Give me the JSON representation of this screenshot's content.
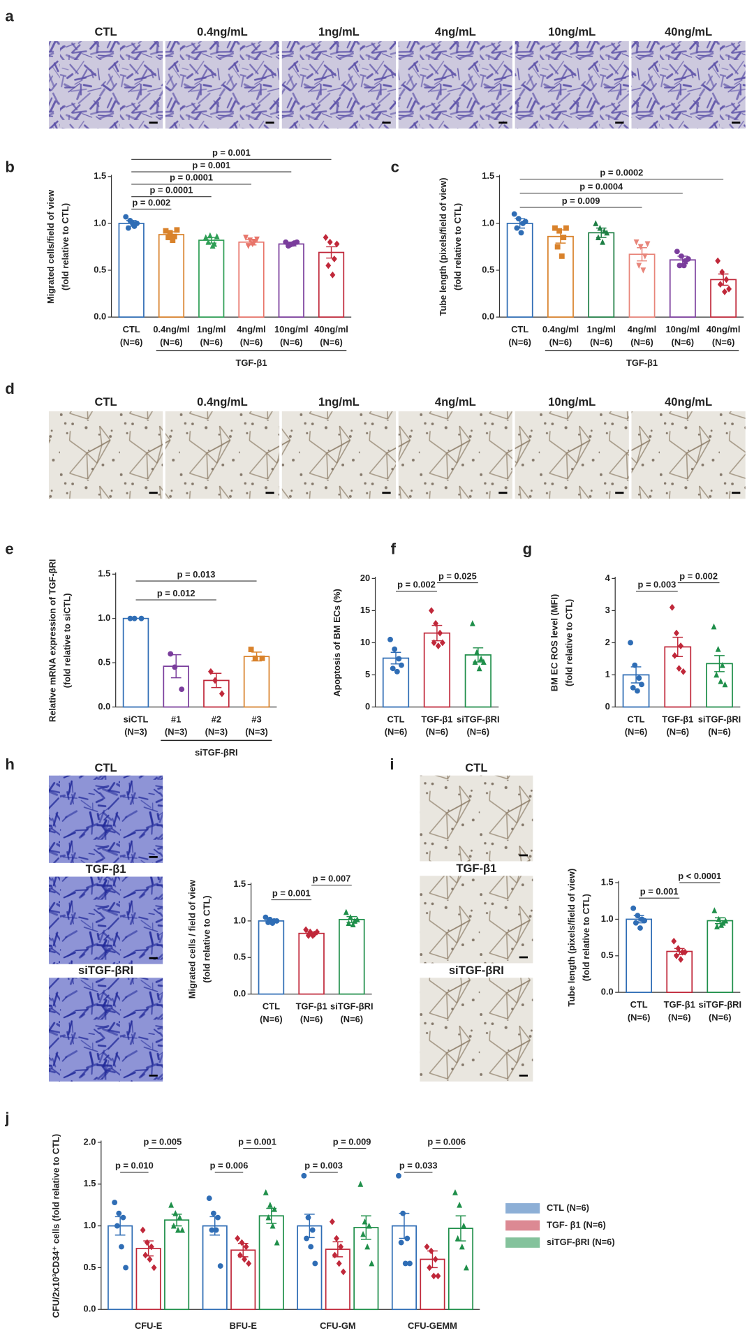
{
  "image_panels": [
    {
      "panel_label": "a",
      "labels": [
        "CTL",
        "0.4ng/mL",
        "1ng/mL",
        "4ng/mL",
        "10ng/mL",
        "40ng/mL"
      ]
    },
    {
      "panel_label": "d",
      "labels": [
        "CTL",
        "0.4ng/mL",
        "1ng/mL",
        "4ng/mL",
        "10ng/mL",
        "40ng/mL"
      ]
    },
    {
      "panel_label": "h",
      "labels": [
        "CTL",
        "TGF-β1",
        "siTGF-βRI"
      ]
    },
    {
      "panel_label": "i",
      "labels": [
        "CTL",
        "TGF-β1",
        "siTGF-βRI"
      ]
    }
  ],
  "chart_data": [
    {
      "type": "bar",
      "panel_label": "b",
      "ylabel": [
        "Migrated cells/field of view",
        "(fold relative to CTL)"
      ],
      "categories": [
        "CTL",
        "0.4ng/ml",
        "1ng/ml",
        "4ng/ml",
        "10ng/ml",
        "40ng/ml"
      ],
      "n_labels": [
        "(N=6)",
        "(N=6)",
        "(N=6)",
        "(N=6)",
        "(N=6)",
        "(N=6)"
      ],
      "values": [
        1.0,
        0.88,
        0.82,
        0.8,
        0.78,
        0.69
      ],
      "errors": [
        0.03,
        0.03,
        0.03,
        0.03,
        0.02,
        0.06
      ],
      "points": [
        [
          1.07,
          1.03,
          0.97,
          0.95,
          1.0,
          1.0
        ],
        [
          0.92,
          0.9,
          0.86,
          0.85,
          0.82,
          0.93
        ],
        [
          0.85,
          0.87,
          0.78,
          0.8,
          0.76,
          0.86
        ],
        [
          0.85,
          0.82,
          0.8,
          0.76,
          0.78,
          0.83
        ],
        [
          0.8,
          0.77,
          0.79,
          0.76,
          0.78,
          0.8
        ],
        [
          0.85,
          0.8,
          0.62,
          0.55,
          0.45,
          0.78
        ]
      ],
      "colors": [
        "#2f6db5",
        "#d9822b",
        "#2e9e55",
        "#e8756a",
        "#7a3d9c",
        "#c0283a"
      ],
      "markers": [
        "circle",
        "square",
        "triangle",
        "triangle-down",
        "circle",
        "diamond"
      ],
      "ylim": [
        0,
        1.5
      ],
      "yticks": [
        {
          "value": 0,
          "label": "0.0"
        },
        {
          "value": 0.5,
          "label": "0.5"
        },
        {
          "value": 1,
          "label": "1.0"
        },
        {
          "value": 1.5,
          "label": "1.5"
        }
      ],
      "annotations": [
        {
          "from": 0,
          "to": 5,
          "label": "p = 0.001"
        },
        {
          "from": 0,
          "to": 4,
          "label": "p = 0.001"
        },
        {
          "from": 0,
          "to": 3,
          "label": "p = 0.0001"
        },
        {
          "from": 0,
          "to": 2,
          "label": "p = 0.0001"
        },
        {
          "from": 0,
          "to": 1,
          "label": "p = 0.002"
        }
      ],
      "group": {
        "label": "TGF-β1",
        "from": 1,
        "to": 5
      }
    },
    {
      "type": "bar",
      "panel_label": "c",
      "ylabel": [
        "Tube length (pixels/field of view)",
        "(fold relative to CTL)"
      ],
      "categories": [
        "CTL",
        "0.4ng/ml",
        "1ng/ml",
        "4ng/ml",
        "10ng/ml",
        "40ng/ml"
      ],
      "n_labels": [
        "(N=6)",
        "(N=6)",
        "(N=6)",
        "(N=6)",
        "(N=6)",
        "(N=6)"
      ],
      "values": [
        1.0,
        0.86,
        0.9,
        0.67,
        0.61,
        0.4
      ],
      "errors": [
        0.05,
        0.07,
        0.05,
        0.07,
        0.04,
        0.06
      ],
      "points": [
        [
          1.1,
          1.05,
          1.0,
          0.95,
          0.9,
          1.02
        ],
        [
          0.95,
          0.92,
          0.85,
          0.75,
          0.65,
          0.95
        ],
        [
          1.0,
          0.95,
          0.92,
          0.85,
          0.8,
          0.9
        ],
        [
          0.8,
          0.75,
          0.65,
          0.55,
          0.5,
          0.78
        ],
        [
          0.7,
          0.65,
          0.6,
          0.55,
          0.55,
          0.62
        ],
        [
          0.6,
          0.48,
          0.4,
          0.35,
          0.27,
          0.3
        ]
      ],
      "colors": [
        "#2f6db5",
        "#d9822b",
        "#1f7f45",
        "#e8857a",
        "#7a3d9c",
        "#c0283a"
      ],
      "markers": [
        "circle",
        "square",
        "triangle",
        "triangle-down",
        "circle",
        "diamond"
      ],
      "ylim": [
        0,
        1.5
      ],
      "yticks": [
        {
          "value": 0,
          "label": "0.0"
        },
        {
          "value": 0.5,
          "label": "0.5"
        },
        {
          "value": 1,
          "label": "1.0"
        },
        {
          "value": 1.5,
          "label": "1.5"
        }
      ],
      "annotations": [
        {
          "from": 0,
          "to": 5,
          "label": "p = 0.0002"
        },
        {
          "from": 0,
          "to": 4,
          "label": "p = 0.0004"
        },
        {
          "from": 0,
          "to": 3,
          "label": "p = 0.009"
        }
      ],
      "group": {
        "label": "TGF-β1",
        "from": 1,
        "to": 5
      }
    },
    {
      "type": "bar",
      "panel_label": "e",
      "ylabel": [
        "Relative mRNA expression of TGF-βRI",
        "(fold relative to siCTL)"
      ],
      "categories": [
        "siCTL",
        "#1",
        "#2",
        "#3"
      ],
      "n_labels": [
        "(N=3)",
        "(N=3)",
        "(N=3)",
        "(N=3)"
      ],
      "values": [
        1.0,
        0.46,
        0.3,
        0.57
      ],
      "errors": [
        0.0,
        0.13,
        0.08,
        0.05
      ],
      "points": [
        [
          1.0,
          1.0,
          1.0
        ],
        [
          0.6,
          0.45,
          0.2
        ],
        [
          0.4,
          0.3,
          0.15
        ],
        [
          0.65,
          0.55,
          0.55
        ]
      ],
      "colors": [
        "#2f6db5",
        "#7a3d9c",
        "#c0283a",
        "#d9822b"
      ],
      "markers": [
        "circle",
        "circle",
        "diamond",
        "square"
      ],
      "ylim": [
        0,
        1.5
      ],
      "yticks": [
        {
          "value": 0,
          "label": "0.0"
        },
        {
          "value": 0.5,
          "label": "0.5"
        },
        {
          "value": 1,
          "label": "1.0"
        },
        {
          "value": 1.5,
          "label": "1.5"
        }
      ],
      "annotations": [
        {
          "from": 0,
          "to": 3,
          "label": "p = 0.013"
        },
        {
          "from": 0,
          "to": 2,
          "label": "p = 0.012"
        }
      ],
      "group": {
        "label": "siTGF-βRI",
        "from": 1,
        "to": 3
      }
    },
    {
      "type": "bar",
      "panel_label": "f",
      "ylabel": [
        "Apoptosis of  BM ECs (%)"
      ],
      "categories": [
        "CTL",
        "TGF-β1",
        "siTGF-βRI"
      ],
      "n_labels": [
        "(N=6)",
        "(N=6)",
        "(N=6)"
      ],
      "values": [
        7.6,
        11.5,
        8.1
      ],
      "errors": [
        0.9,
        1.2,
        1.1
      ],
      "points": [
        [
          10.5,
          9,
          7.5,
          6,
          5.5,
          6.5
        ],
        [
          15,
          13,
          11.5,
          10,
          9.5,
          10
        ],
        [
          13,
          8.5,
          7.5,
          7,
          6,
          7
        ]
      ],
      "colors": [
        "#2f6db5",
        "#c0283a",
        "#1f8f4a"
      ],
      "markers": [
        "circle",
        "diamond",
        "triangle"
      ],
      "ylim": [
        0,
        20
      ],
      "yticks": [
        0,
        5,
        10,
        15,
        20
      ],
      "annotations": [
        {
          "from": 1,
          "to": 2,
          "label": "p = 0.025"
        },
        {
          "from": 0,
          "to": 1,
          "label": "p = 0.002"
        }
      ]
    },
    {
      "type": "bar",
      "panel_label": "g",
      "ylabel": [
        "BM EC ROS level (MFI)",
        "(fold relative to CTL)"
      ],
      "categories": [
        "CTL",
        "TGF-β1",
        "siTGF-βRI"
      ],
      "n_labels": [
        "(N=6)",
        "(N=6)",
        "(N=6)"
      ],
      "values": [
        1.0,
        1.87,
        1.35
      ],
      "errors": [
        0.25,
        0.3,
        0.25
      ],
      "points": [
        [
          2.0,
          1.3,
          0.9,
          0.6,
          0.5,
          0.7
        ],
        [
          3.1,
          2.3,
          1.9,
          1.6,
          1.2,
          1.1
        ],
        [
          2.5,
          1.8,
          1.3,
          1.0,
          0.8,
          0.7
        ]
      ],
      "colors": [
        "#2f6db5",
        "#c0283a",
        "#1f8f4a"
      ],
      "markers": [
        "circle",
        "diamond",
        "triangle"
      ],
      "ylim": [
        0,
        4
      ],
      "yticks": [
        0,
        1,
        2,
        3,
        4
      ],
      "annotations": [
        {
          "from": 1,
          "to": 2,
          "label": "p = 0.002"
        },
        {
          "from": 0,
          "to": 1,
          "label": "p = 0.003"
        }
      ]
    },
    {
      "type": "bar",
      "ylabel": [
        "Migrated cells / field of view",
        "(fold relative to CTL)"
      ],
      "categories": [
        "CTL",
        "TGF-β1",
        "siTGF-βRI"
      ],
      "n_labels": [
        "(N=6)",
        "(N=6)",
        "(N=6)"
      ],
      "values": [
        1.0,
        0.83,
        1.02
      ],
      "errors": [
        0.02,
        0.02,
        0.04
      ],
      "points": [
        [
          1.05,
          1.02,
          1.0,
          0.98,
          0.97,
          1.0
        ],
        [
          0.88,
          0.85,
          0.82,
          0.8,
          0.8,
          0.85
        ],
        [
          1.12,
          1.05,
          1.0,
          0.97,
          0.95,
          1.02
        ]
      ],
      "colors": [
        "#2f6db5",
        "#c0283a",
        "#1f8f4a"
      ],
      "markers": [
        "circle",
        "diamond",
        "triangle"
      ],
      "ylim": [
        0,
        1.5
      ],
      "yticks": [
        {
          "value": 0,
          "label": "0.0"
        },
        {
          "value": 0.5,
          "label": "0.5"
        },
        {
          "value": 1,
          "label": "1.0"
        },
        {
          "value": 1.5,
          "label": "1.5"
        }
      ],
      "annotations": [
        {
          "from": 1,
          "to": 2,
          "label": "p = 0.007"
        },
        {
          "from": 0,
          "to": 1,
          "label": "p = 0.001"
        }
      ]
    },
    {
      "type": "bar",
      "ylabel": [
        "Tube length (pixels/field of view)",
        "(fold relative to CTL)"
      ],
      "categories": [
        "CTL",
        "TGF-β1",
        "siTGF-βRI"
      ],
      "n_labels": [
        "(N=6)",
        "(N=6)",
        "(N=6)"
      ],
      "values": [
        1.0,
        0.56,
        0.98
      ],
      "errors": [
        0.05,
        0.04,
        0.04
      ],
      "points": [
        [
          1.15,
          1.05,
          1.0,
          0.95,
          0.88,
          0.98
        ],
        [
          0.7,
          0.6,
          0.55,
          0.5,
          0.45,
          0.55
        ],
        [
          1.12,
          1.0,
          0.95,
          0.9,
          0.92,
          0.98
        ]
      ],
      "colors": [
        "#2f6db5",
        "#c0283a",
        "#1f8f4a"
      ],
      "markers": [
        "circle",
        "diamond",
        "triangle"
      ],
      "ylim": [
        0,
        1.5
      ],
      "yticks": [
        {
          "value": 0,
          "label": "0.0"
        },
        {
          "value": 0.5,
          "label": "0.5"
        },
        {
          "value": 1,
          "label": "1.0"
        },
        {
          "value": 1.5,
          "label": "1.5"
        }
      ],
      "annotations": [
        {
          "from": 1,
          "to": 2,
          "label": "p < 0.0001"
        },
        {
          "from": 0,
          "to": 1,
          "label": "p = 0.001"
        }
      ]
    },
    {
      "type": "grouped_bar",
      "panel_label": "j",
      "ylabel": [
        "CFU/2x10³CD34⁺ cells  (fold relative to CTL)"
      ],
      "categories": [
        "CFU-E",
        "BFU-E",
        "CFU-GM",
        "CFU-GEMM"
      ],
      "series": [
        {
          "name": "CTL (N=6)",
          "color": "#2f6db5",
          "marker": "circle",
          "values": [
            1.0,
            1.0,
            1.0,
            1.0
          ],
          "errors": [
            0.11,
            0.11,
            0.14,
            0.15
          ],
          "points": [
            [
              1.28,
              1.15,
              1.1,
              1.0,
              0.75,
              0.5
            ],
            [
              1.33,
              1.15,
              1.1,
              0.95,
              0.95,
              0.52
            ],
            [
              1.6,
              1.1,
              0.95,
              0.85,
              0.75,
              0.55
            ],
            [
              1.6,
              1.15,
              0.85,
              0.8,
              0.55,
              0.55
            ]
          ]
        },
        {
          "name": "TGF- β1 (N=6)",
          "color": "#c0283a",
          "marker": "diamond",
          "values": [
            0.73,
            0.71,
            0.72,
            0.6
          ],
          "errors": [
            0.09,
            0.08,
            0.09,
            0.1
          ],
          "points": [
            [
              0.95,
              0.8,
              0.75,
              0.65,
              0.6,
              0.5
            ],
            [
              0.85,
              0.8,
              0.75,
              0.65,
              0.6,
              0.55
            ],
            [
              1.05,
              0.85,
              0.75,
              0.65,
              0.55,
              0.45
            ],
            [
              0.75,
              0.7,
              0.6,
              0.5,
              0.4,
              0.4
            ]
          ]
        },
        {
          "name": "siTGF-βRI (N=6)",
          "color": "#1f8f4a",
          "marker": "triangle",
          "values": [
            1.07,
            1.12,
            0.98,
            0.97
          ],
          "errors": [
            0.07,
            0.09,
            0.14,
            0.15
          ],
          "points": [
            [
              1.25,
              1.15,
              1.1,
              1.0,
              0.95,
              0.95
            ],
            [
              1.4,
              1.25,
              1.2,
              1.1,
              1.0,
              0.8
            ],
            [
              1.5,
              1.05,
              1.0,
              0.9,
              0.75,
              0.55
            ],
            [
              1.4,
              1.25,
              1.0,
              0.85,
              0.75,
              0.5
            ]
          ]
        }
      ],
      "ylim": [
        0,
        2
      ],
      "yticks": [
        {
          "value": 0,
          "label": "0.0"
        },
        {
          "value": 0.5,
          "label": "0.5"
        },
        {
          "value": 1,
          "label": "1.0"
        },
        {
          "value": 1.5,
          "label": "1.5"
        },
        {
          "value": 2,
          "label": "2.0"
        }
      ],
      "legend": "right",
      "annotations": [
        {
          "category": 0,
          "from": 0,
          "to": 1,
          "label": "p = 0.010"
        },
        {
          "category": 0,
          "from": 1,
          "to": 2,
          "label": "p = 0.005"
        },
        {
          "category": 1,
          "from": 0,
          "to": 1,
          "label": "p = 0.006"
        },
        {
          "category": 1,
          "from": 1,
          "to": 2,
          "label": "p = 0.001"
        },
        {
          "category": 2,
          "from": 0,
          "to": 1,
          "label": "p = 0.003"
        },
        {
          "category": 2,
          "from": 1,
          "to": 2,
          "label": "p = 0.009"
        },
        {
          "category": 3,
          "from": 0,
          "to": 1,
          "label": "p = 0.033"
        },
        {
          "category": 3,
          "from": 1,
          "to": 2,
          "label": "p = 0.006"
        }
      ]
    }
  ]
}
